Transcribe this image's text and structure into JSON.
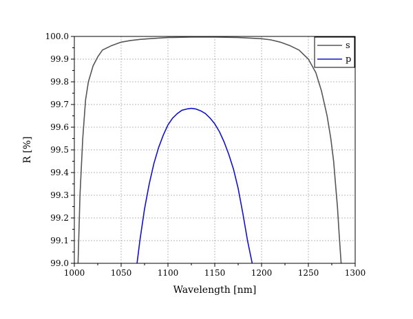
{
  "chart_data": {
    "type": "line",
    "xlabel": "Wavelength [nm]",
    "ylabel": "R [%]",
    "xlim": [
      1000,
      1300
    ],
    "ylim": [
      99.0,
      100.0
    ],
    "x_ticks": [
      1000,
      1050,
      1100,
      1150,
      1200,
      1250,
      1300
    ],
    "y_ticks": [
      99.0,
      99.1,
      99.2,
      99.3,
      99.4,
      99.5,
      99.6,
      99.7,
      99.8,
      99.9,
      100.0
    ],
    "x_tick_labels": [
      "1000",
      "1050",
      "1100",
      "1150",
      "1200",
      "1250",
      "1300"
    ],
    "y_tick_labels": [
      "99.0",
      "99.1",
      "99.2",
      "99.3",
      "99.4",
      "99.5",
      "99.6",
      "99.7",
      "99.8",
      "99.9",
      "100.0"
    ],
    "grid": true,
    "legend_position": "top-right",
    "series": [
      {
        "name": "s",
        "color": "#555555",
        "x": [
          1004,
          1006,
          1009,
          1012,
          1015,
          1020,
          1025,
          1030,
          1040,
          1050,
          1060,
          1070,
          1080,
          1100,
          1125,
          1150,
          1175,
          1200,
          1210,
          1220,
          1230,
          1240,
          1250,
          1258,
          1264,
          1270,
          1274,
          1277,
          1279,
          1281,
          1283,
          1285
        ],
        "y": [
          99.0,
          99.3,
          99.55,
          99.72,
          99.8,
          99.87,
          99.91,
          99.94,
          99.96,
          99.975,
          99.982,
          99.987,
          99.99,
          99.995,
          99.997,
          99.997,
          99.995,
          99.99,
          99.985,
          99.975,
          99.96,
          99.94,
          99.9,
          99.84,
          99.76,
          99.65,
          99.55,
          99.45,
          99.35,
          99.25,
          99.12,
          99.0
        ]
      },
      {
        "name": "p",
        "color": "#1010cc",
        "x": [
          1067,
          1070,
          1075,
          1080,
          1085,
          1090,
          1095,
          1100,
          1105,
          1110,
          1115,
          1120,
          1125,
          1130,
          1135,
          1140,
          1145,
          1150,
          1155,
          1160,
          1165,
          1170,
          1175,
          1180,
          1185,
          1190
        ],
        "y": [
          99.0,
          99.1,
          99.24,
          99.35,
          99.44,
          99.51,
          99.565,
          99.61,
          99.64,
          99.66,
          99.675,
          99.68,
          99.683,
          99.68,
          99.672,
          99.66,
          99.64,
          99.615,
          99.58,
          99.535,
          99.48,
          99.415,
          99.33,
          99.22,
          99.1,
          99.0
        ]
      }
    ]
  }
}
